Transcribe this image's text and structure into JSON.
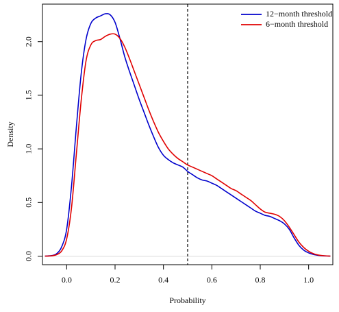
{
  "chart_data": {
    "type": "line",
    "title": "",
    "xlabel": "Probability",
    "ylabel": "Density",
    "xlim": [
      -0.1,
      1.1
    ],
    "ylim": [
      -0.08,
      2.35
    ],
    "xticks": [
      0.0,
      0.2,
      0.4,
      0.6,
      0.8,
      1.0
    ],
    "xtick_labels": [
      "0.0",
      "0.2",
      "0.4",
      "0.6",
      "0.8",
      "1.0"
    ],
    "yticks": [
      0.0,
      0.5,
      1.0,
      1.5,
      2.0
    ],
    "ytick_labels": [
      "0.0",
      "0.5",
      "1.0",
      "1.5",
      "2.0"
    ],
    "grid": false,
    "legend_position": "top-right",
    "reference_line": {
      "x": 0.5,
      "style": "dashed",
      "color": "#000000"
    },
    "baseline": {
      "y": 0.0,
      "color": "#d9d9d9"
    },
    "series": [
      {
        "name": "12−month threshold",
        "color": "#0000cc",
        "x": [
          -0.09,
          -0.06,
          -0.04,
          -0.02,
          0.0,
          0.02,
          0.04,
          0.06,
          0.08,
          0.1,
          0.12,
          0.14,
          0.16,
          0.18,
          0.2,
          0.22,
          0.24,
          0.26,
          0.28,
          0.3,
          0.32,
          0.34,
          0.36,
          0.38,
          0.4,
          0.42,
          0.44,
          0.46,
          0.48,
          0.5,
          0.52,
          0.54,
          0.56,
          0.58,
          0.6,
          0.62,
          0.64,
          0.66,
          0.68,
          0.7,
          0.72,
          0.74,
          0.76,
          0.78,
          0.8,
          0.82,
          0.84,
          0.86,
          0.88,
          0.9,
          0.92,
          0.94,
          0.96,
          0.98,
          1.0,
          1.02,
          1.04,
          1.06,
          1.09
        ],
        "y": [
          0.0,
          0.005,
          0.025,
          0.09,
          0.25,
          0.65,
          1.2,
          1.7,
          2.02,
          2.17,
          2.22,
          2.24,
          2.26,
          2.25,
          2.18,
          2.03,
          1.86,
          1.72,
          1.59,
          1.46,
          1.34,
          1.22,
          1.11,
          1.01,
          0.94,
          0.9,
          0.87,
          0.85,
          0.83,
          0.79,
          0.76,
          0.73,
          0.71,
          0.7,
          0.68,
          0.66,
          0.63,
          0.6,
          0.57,
          0.54,
          0.51,
          0.48,
          0.45,
          0.42,
          0.4,
          0.38,
          0.37,
          0.35,
          0.33,
          0.3,
          0.25,
          0.17,
          0.1,
          0.055,
          0.03,
          0.015,
          0.007,
          0.003,
          0.0
        ]
      },
      {
        "name": "6−month threshold",
        "color": "#e00000",
        "x": [
          -0.09,
          -0.06,
          -0.04,
          -0.02,
          0.0,
          0.02,
          0.04,
          0.06,
          0.08,
          0.1,
          0.12,
          0.14,
          0.16,
          0.18,
          0.2,
          0.22,
          0.24,
          0.26,
          0.28,
          0.3,
          0.32,
          0.34,
          0.36,
          0.38,
          0.4,
          0.42,
          0.44,
          0.46,
          0.48,
          0.5,
          0.52,
          0.54,
          0.56,
          0.58,
          0.6,
          0.62,
          0.64,
          0.66,
          0.68,
          0.7,
          0.72,
          0.74,
          0.76,
          0.78,
          0.8,
          0.82,
          0.84,
          0.86,
          0.88,
          0.9,
          0.92,
          0.94,
          0.96,
          0.98,
          1.0,
          1.02,
          1.04,
          1.06,
          1.09
        ],
        "y": [
          0.0,
          0.003,
          0.015,
          0.05,
          0.16,
          0.45,
          0.95,
          1.45,
          1.82,
          1.97,
          2.01,
          2.02,
          2.05,
          2.07,
          2.07,
          2.03,
          1.95,
          1.84,
          1.72,
          1.6,
          1.48,
          1.36,
          1.25,
          1.15,
          1.07,
          1.0,
          0.95,
          0.91,
          0.88,
          0.85,
          0.83,
          0.81,
          0.79,
          0.77,
          0.75,
          0.72,
          0.69,
          0.66,
          0.63,
          0.61,
          0.58,
          0.55,
          0.52,
          0.48,
          0.44,
          0.41,
          0.4,
          0.39,
          0.37,
          0.33,
          0.27,
          0.2,
          0.13,
          0.08,
          0.045,
          0.022,
          0.01,
          0.004,
          0.0
        ]
      }
    ]
  }
}
